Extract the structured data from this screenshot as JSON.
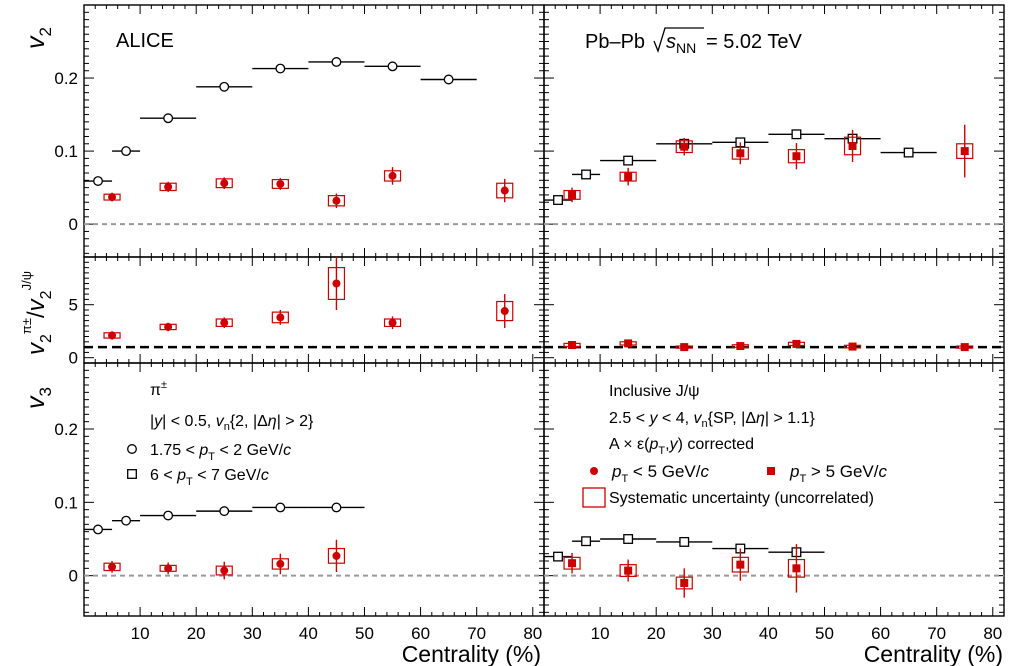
{
  "figure": {
    "left_top_label": "ALICE",
    "right_top_label": "Pb–Pb √s_NN = 5.02 TeV",
    "right_top_label_parts": {
      "system": "Pb–Pb",
      "sqrt": "s",
      "sub": "NN",
      "value": "= 5.02 TeV"
    },
    "xlabel": "Centrality (%)",
    "ylabels": {
      "top": "v2",
      "middle": "v2^π±/v2^J/ψ",
      "bottom": "v3"
    },
    "legend_left": {
      "title": "π±",
      "selection": "|y| < 0.5,   v_n{2, |Δη| > 2}",
      "open_circle": "1.75 < p_T < 2 GeV/c",
      "open_square": "6 < p_T < 7 GeV/c"
    },
    "legend_right": {
      "title": "Inclusive J/ψ",
      "selection": "2.5 < y < 4,   v_n{SP, |Δη| > 1.1}",
      "correction": "A × ε(p_T,y) corrected",
      "filled_circle": "p_T < 5 GeV/c",
      "filled_square": "p_T > 5 GeV/c",
      "syst_box": "Systematic uncertainty (uncorrelated)"
    },
    "colors": {
      "jpsi": "#cc0000",
      "pion": "#000000",
      "reference_line": "#999999"
    }
  },
  "chart_data": [
    {
      "type": "scatter",
      "panel": "top-left",
      "ylabel": "v2",
      "xlim": [
        0,
        82
      ],
      "ylim": [
        -0.045,
        0.3
      ],
      "yticks": [
        0,
        0.1,
        0.2
      ],
      "xticks": [
        10,
        20,
        30,
        40,
        50,
        60,
        70,
        80
      ],
      "reference_line": 0,
      "series": [
        {
          "name": "1.75 < p_T < 2 GeV/c",
          "marker": "open-circle",
          "color": "#000000",
          "x": [
            2.5,
            7.5,
            15,
            25,
            35,
            45,
            55,
            65
          ],
          "xerr": [
            2.5,
            2.5,
            5,
            5,
            5,
            5,
            5,
            5
          ],
          "y": [
            0.059,
            0.1,
            0.145,
            0.188,
            0.213,
            0.222,
            0.216,
            0.198
          ]
        },
        {
          "name": "p_T < 5 GeV/c",
          "marker": "filled-circle",
          "color": "#cc0000",
          "x": [
            5,
            15,
            25,
            35,
            45,
            55,
            75
          ],
          "y": [
            0.037,
            0.051,
            0.056,
            0.055,
            0.032,
            0.066,
            0.046
          ],
          "yerr": [
            0.006,
            0.007,
            0.008,
            0.008,
            0.01,
            0.012,
            0.016
          ],
          "syst": [
            0.004,
            0.005,
            0.006,
            0.006,
            0.007,
            0.007,
            0.01
          ]
        }
      ]
    },
    {
      "type": "scatter",
      "panel": "top-right",
      "xlim": [
        0,
        82
      ],
      "ylim": [
        -0.045,
        0.3
      ],
      "xticks": [
        10,
        20,
        30,
        40,
        50,
        60,
        70,
        80
      ],
      "reference_line": 0,
      "series": [
        {
          "name": "6 < p_T < 7 GeV/c",
          "marker": "open-square",
          "color": "#000000",
          "x": [
            2.5,
            7.5,
            15,
            25,
            35,
            45,
            55,
            65
          ],
          "xerr": [
            2.5,
            2.5,
            5,
            5,
            5,
            5,
            5,
            5
          ],
          "y": [
            0.033,
            0.068,
            0.087,
            0.11,
            0.112,
            0.123,
            0.117,
            0.098
          ]
        },
        {
          "name": "p_T > 5 GeV/c",
          "marker": "filled-square",
          "color": "#cc0000",
          "x": [
            5,
            15,
            25,
            35,
            45,
            55,
            75
          ],
          "y": [
            0.04,
            0.065,
            0.106,
            0.097,
            0.093,
            0.107,
            0.1
          ],
          "yerr": [
            0.01,
            0.012,
            0.012,
            0.015,
            0.018,
            0.022,
            0.036
          ],
          "syst": [
            0.006,
            0.006,
            0.008,
            0.008,
            0.009,
            0.012,
            0.01
          ]
        }
      ]
    },
    {
      "type": "scatter",
      "panel": "middle-left",
      "ylabel": "v2^π±/v2^J/ψ",
      "xlim": [
        0,
        82
      ],
      "ylim": [
        -0.5,
        9.5
      ],
      "yticks": [
        0,
        5
      ],
      "xticks": [
        10,
        20,
        30,
        40,
        50,
        60,
        70,
        80
      ],
      "reference_line": 1,
      "series": [
        {
          "name": "p_T < 5 GeV/c",
          "marker": "filled-circle",
          "color": "#cc0000",
          "x": [
            5,
            15,
            25,
            35,
            45,
            55,
            75
          ],
          "y": [
            2.1,
            2.9,
            3.3,
            3.8,
            7.0,
            3.3,
            4.4
          ],
          "yerr": [
            0.4,
            0.4,
            0.5,
            0.7,
            2.5,
            0.6,
            1.6
          ],
          "syst": [
            0.25,
            0.25,
            0.35,
            0.5,
            1.5,
            0.35,
            0.9
          ]
        }
      ]
    },
    {
      "type": "scatter",
      "panel": "middle-right",
      "xlim": [
        0,
        82
      ],
      "ylim": [
        -0.5,
        9.5
      ],
      "xticks": [
        10,
        20,
        30,
        40,
        50,
        60,
        70,
        80
      ],
      "reference_line": 1,
      "series": [
        {
          "name": "p_T > 5 GeV/c",
          "marker": "filled-square",
          "color": "#cc0000",
          "x": [
            5,
            15,
            25,
            35,
            45,
            55,
            75
          ],
          "y": [
            1.2,
            1.35,
            1.0,
            1.1,
            1.3,
            1.05,
            1.0
          ],
          "yerr": [
            0.2,
            0.2,
            0.15,
            0.2,
            0.25,
            0.2,
            0.15
          ],
          "syst": [
            0.15,
            0.15,
            0.1,
            0.12,
            0.15,
            0.12,
            0.1
          ]
        }
      ]
    },
    {
      "type": "scatter",
      "panel": "bottom-left",
      "ylabel": "v3",
      "xlim": [
        0,
        82
      ],
      "ylim": [
        -0.055,
        0.29
      ],
      "yticks": [
        0,
        0.1,
        0.2
      ],
      "xticks": [
        10,
        20,
        30,
        40,
        50,
        60,
        70,
        80
      ],
      "reference_line": 0,
      "series": [
        {
          "name": "1.75 < p_T < 2 GeV/c",
          "marker": "open-circle",
          "color": "#000000",
          "x": [
            2.5,
            7.5,
            15,
            25,
            35,
            45
          ],
          "xerr": [
            2.5,
            2.5,
            5,
            5,
            5,
            5
          ],
          "y": [
            0.063,
            0.075,
            0.082,
            0.088,
            0.093,
            0.093
          ]
        },
        {
          "name": "p_T < 5 GeV/c",
          "marker": "filled-circle",
          "color": "#cc0000",
          "x": [
            5,
            15,
            25,
            35,
            45
          ],
          "y": [
            0.012,
            0.01,
            0.007,
            0.016,
            0.027
          ],
          "yerr": [
            0.008,
            0.008,
            0.012,
            0.014,
            0.022
          ],
          "syst": [
            0.005,
            0.004,
            0.006,
            0.007,
            0.01
          ]
        }
      ]
    },
    {
      "type": "scatter",
      "panel": "bottom-right",
      "xlabel": "Centrality (%)",
      "xlim": [
        0,
        82
      ],
      "ylim": [
        -0.055,
        0.29
      ],
      "xticks": [
        10,
        20,
        30,
        40,
        50,
        60,
        70,
        80
      ],
      "reference_line": 0,
      "series": [
        {
          "name": "6 < p_T < 7 GeV/c",
          "marker": "open-square",
          "color": "#000000",
          "x": [
            2.5,
            7.5,
            15,
            25,
            35,
            45
          ],
          "xerr": [
            2.5,
            2.5,
            5,
            5,
            5,
            5
          ],
          "y": [
            0.026,
            0.047,
            0.05,
            0.046,
            0.037,
            0.032
          ]
        },
        {
          "name": "p_T > 5 GeV/c",
          "marker": "filled-square",
          "color": "#cc0000",
          "x": [
            5,
            15,
            25,
            35,
            45
          ],
          "y": [
            0.017,
            0.007,
            -0.01,
            0.015,
            0.01
          ],
          "yerr": [
            0.014,
            0.015,
            0.02,
            0.022,
            0.033
          ],
          "syst": [
            0.008,
            0.008,
            0.008,
            0.01,
            0.012
          ]
        }
      ]
    }
  ]
}
